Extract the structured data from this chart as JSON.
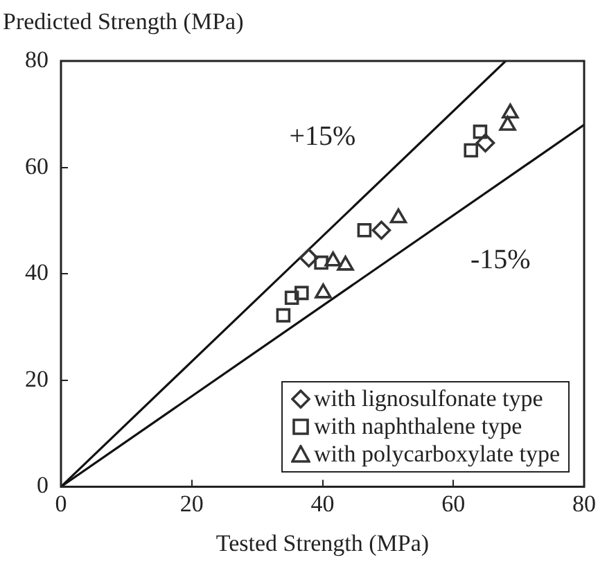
{
  "chart_data": {
    "type": "scatter",
    "xlabel": "Tested Strength (MPa)",
    "ylabel": "Predicted Strength (MPa)",
    "xlim": [
      0,
      80
    ],
    "ylim": [
      0,
      80
    ],
    "xticks": [
      0,
      20,
      40,
      60,
      80
    ],
    "yticks": [
      0,
      20,
      40,
      60,
      80
    ],
    "grid": false,
    "legend": "bottom right",
    "series": [
      {
        "name": "with lignosulfonate type",
        "color": "#333333",
        "marker": "diamond",
        "x": [
          37.9,
          49,
          64.9
        ],
        "values": [
          43,
          48.2,
          64.6
        ]
      },
      {
        "name": "with naphthalene type",
        "color": "#333333",
        "marker": "square",
        "x": [
          62.7,
          64.1,
          46.4,
          39.8,
          35.3,
          34,
          36.8
        ],
        "values": [
          63.2,
          66.7,
          48.2,
          42.1,
          35.5,
          32.2,
          36.4
        ]
      },
      {
        "name": "with polycarboxylate type",
        "color": "#333333",
        "marker": "triangle",
        "x": [
          68.7,
          68.3,
          51.6,
          43.5,
          40.1,
          41.6
        ],
        "values": [
          70.2,
          67.9,
          50.5,
          41.6,
          36.4,
          42.4
        ]
      },
      {
        "type": "line",
        "color": "#111111",
        "marker": "none",
        "x": [
          0,
          68
        ],
        "values": [
          0,
          80
        ]
      },
      {
        "type": "line",
        "color": "#111111",
        "marker": "none",
        "x": [
          0,
          80
        ],
        "values": [
          0,
          68
        ]
      }
    ],
    "annotations": [
      "+15%",
      "-15%"
    ]
  }
}
